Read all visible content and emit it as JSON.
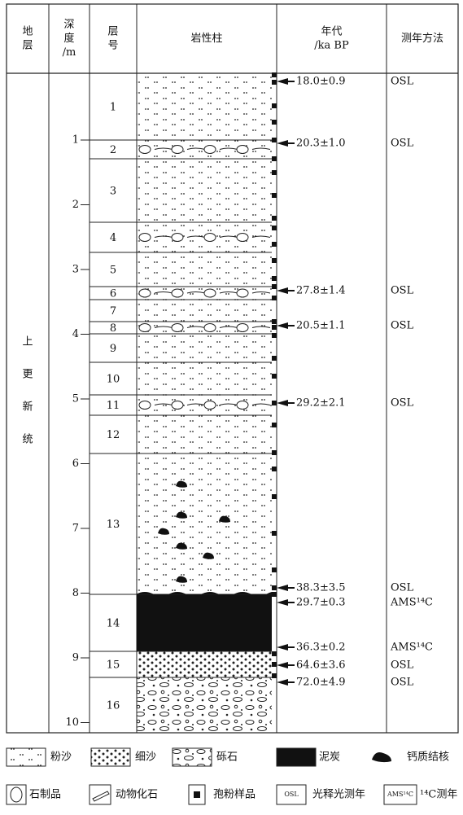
{
  "header": {
    "columns": [
      [
        "地",
        "层"
      ],
      [
        "深",
        "度",
        "/m"
      ],
      [
        "层",
        "号"
      ],
      [
        "岩性柱"
      ],
      [
        "年代",
        "/ka BP"
      ],
      [
        "测年方法"
      ]
    ]
  },
  "stratum": [
    "上",
    "更",
    "新",
    "统"
  ],
  "depth_ticks": [
    "1",
    "2",
    "3",
    "4",
    "5",
    "6",
    "7",
    "8",
    "9",
    "10"
  ],
  "layers": [
    "1",
    "2",
    "3",
    "4",
    "5",
    "6",
    "7",
    "8",
    "9",
    "10",
    "11",
    "12",
    "13",
    "14",
    "15",
    "16"
  ],
  "dates": [
    {
      "age": "18.0±0.9",
      "method": "OSL"
    },
    {
      "age": "20.3±1.0",
      "method": "OSL"
    },
    {
      "age": "27.8±1.4",
      "method": "OSL"
    },
    {
      "age": "20.5±1.1",
      "method": "OSL"
    },
    {
      "age": "29.2±2.1",
      "method": "OSL"
    },
    {
      "age": "38.3±3.5",
      "method": "OSL"
    },
    {
      "age": "29.7±0.3",
      "method": "AMS¹⁴C"
    },
    {
      "age": "36.3±0.2",
      "method": "AMS¹⁴C"
    },
    {
      "age": "64.6±3.6",
      "method": "OSL"
    },
    {
      "age": "72.0±4.9",
      "method": "OSL"
    }
  ],
  "legend": [
    {
      "label": "粉沙"
    },
    {
      "label": "细沙"
    },
    {
      "label": "砾石"
    },
    {
      "label": "泥炭"
    },
    {
      "label": "钙质结核"
    },
    {
      "label": "石制品"
    },
    {
      "label": "动物化石"
    },
    {
      "label": "孢粉样品"
    },
    {
      "icon": "OSL",
      "label": "光释光测年"
    },
    {
      "icon": "AMS¹⁴C",
      "label": "¹⁴C测年"
    }
  ]
}
